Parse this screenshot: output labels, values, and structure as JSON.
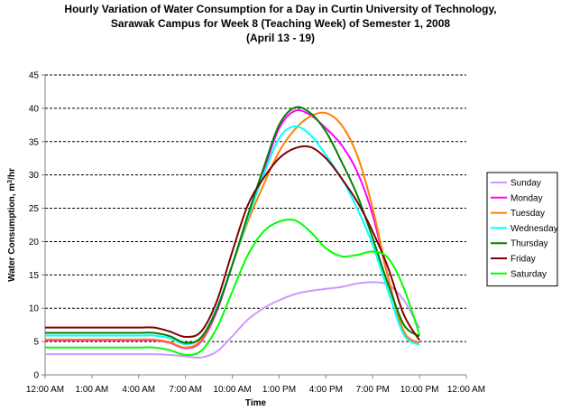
{
  "chart_data": {
    "type": "line",
    "title": [
      "Hourly Variation of Water Consumption for a Day in Curtin University of Technology,",
      "Sarawak Campus for Week 8 (Teaching Week) of Semester 1, 2008",
      "(April 13 - 19)"
    ],
    "xlabel": "Time",
    "ylabel_main": "Water Consumption, m",
    "ylabel_sup": "3",
    "ylabel_tail": "/hr",
    "x_hours": [
      0,
      1,
      2,
      3,
      4,
      5,
      6,
      7,
      8,
      9,
      10,
      11,
      12,
      13,
      14,
      15,
      16,
      17,
      18,
      19,
      20,
      21,
      22,
      23,
      24
    ],
    "x_tick_labels": [
      "12:00 AM",
      "1:00 AM",
      "4:00 AM",
      "7:00 AM",
      "10:00 AM",
      "1:00 PM",
      "4:00 PM",
      "7:00 PM",
      "10:00 PM",
      "12:00 AM"
    ],
    "x_tick_hours": [
      0,
      3,
      6,
      9,
      12,
      15,
      18,
      21,
      24,
      27
    ],
    "x_axis_max_hours": 27,
    "ylim": [
      0,
      45
    ],
    "y_ticks": [
      0,
      5,
      10,
      15,
      20,
      25,
      30,
      35,
      40,
      45
    ],
    "grid": "horizontal dashed",
    "legend_position": "right",
    "series": [
      {
        "name": "Sunday",
        "color": "#cc99ff",
        "values": [
          3.1,
          3.1,
          3.1,
          3.1,
          3.1,
          3.1,
          3.1,
          3.1,
          3.0,
          2.8,
          2.6,
          3.5,
          5.8,
          8.3,
          10.0,
          11.2,
          12.1,
          12.6,
          12.9,
          13.2,
          13.7,
          13.9,
          13.5,
          11.2,
          7.0
        ]
      },
      {
        "name": "Monday",
        "color": "#ff00ff",
        "values": [
          5.2,
          5.2,
          5.2,
          5.2,
          5.2,
          5.2,
          5.2,
          5.2,
          4.8,
          4.0,
          5.0,
          9.5,
          16.5,
          23.5,
          30.5,
          37.0,
          39.6,
          39.0,
          37.0,
          34.5,
          30.5,
          24.0,
          14.5,
          6.5,
          4.8
        ]
      },
      {
        "name": "Tuesday",
        "color": "#ff8000",
        "values": [
          5.3,
          5.3,
          5.3,
          5.3,
          5.3,
          5.3,
          5.3,
          5.3,
          4.9,
          4.1,
          5.2,
          9.8,
          16.5,
          23.0,
          28.5,
          33.5,
          36.8,
          38.8,
          39.3,
          37.5,
          33.0,
          25.0,
          14.5,
          6.5,
          4.8
        ]
      },
      {
        "name": "Wednesday",
        "color": "#00ffff",
        "values": [
          5.9,
          5.9,
          5.9,
          5.9,
          5.9,
          5.9,
          5.9,
          5.9,
          5.5,
          4.6,
          5.6,
          10.0,
          16.5,
          23.5,
          30.0,
          35.5,
          37.3,
          36.0,
          33.0,
          29.5,
          25.0,
          19.5,
          12.5,
          6.0,
          4.5
        ]
      },
      {
        "name": "Thursday",
        "color": "#008000",
        "values": [
          6.3,
          6.3,
          6.3,
          6.3,
          6.3,
          6.3,
          6.3,
          6.3,
          5.8,
          4.8,
          5.6,
          9.8,
          16.5,
          24.0,
          31.0,
          37.5,
          40.1,
          39.3,
          36.5,
          32.0,
          27.0,
          20.5,
          13.5,
          7.5,
          5.8
        ]
      },
      {
        "name": "Friday",
        "color": "#800000",
        "values": [
          7.1,
          7.1,
          7.1,
          7.1,
          7.1,
          7.1,
          7.1,
          7.1,
          6.5,
          5.7,
          6.5,
          11.0,
          18.5,
          25.5,
          29.5,
          32.5,
          34.0,
          34.2,
          32.5,
          29.5,
          26.0,
          21.5,
          16.0,
          9.0,
          5.2
        ]
      },
      {
        "name": "Saturday",
        "color": "#00ff00",
        "values": [
          4.1,
          4.1,
          4.1,
          4.1,
          4.1,
          4.1,
          4.1,
          4.1,
          3.7,
          3.0,
          3.6,
          7.0,
          12.5,
          18.0,
          21.5,
          23.0,
          23.2,
          21.5,
          19.0,
          17.8,
          18.0,
          18.5,
          17.5,
          13.0,
          6.0
        ]
      }
    ]
  }
}
